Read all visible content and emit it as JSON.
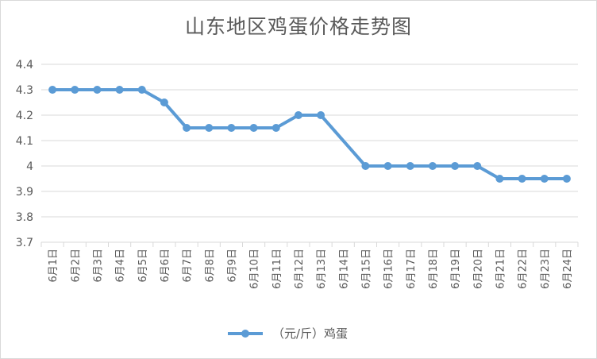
{
  "chart_data": {
    "type": "line",
    "title": "山东地区鸡蛋价格走势图",
    "xlabel": "",
    "ylabel": "",
    "categories": [
      "6月1日",
      "6月2日",
      "6月3日",
      "6月4日",
      "6月5日",
      "6月6日",
      "6月7日",
      "6月8日",
      "6月9日",
      "6月10日",
      "6月11日",
      "6月12日",
      "6月13日",
      "6月14日",
      "6月15日",
      "6月16日",
      "6月17日",
      "6月18日",
      "6月19日",
      "6月20日",
      "6月21日",
      "6月22日",
      "6月23日",
      "6月24日"
    ],
    "series": [
      {
        "name": "（元/斤）鸡蛋",
        "values": [
          4.3,
          4.3,
          4.3,
          4.3,
          4.3,
          4.25,
          4.15,
          4.15,
          4.15,
          4.15,
          4.15,
          4.2,
          4.2,
          null,
          4.0,
          4.0,
          4.0,
          4.0,
          4.0,
          4.0,
          3.95,
          3.95,
          3.95,
          3.95
        ],
        "color": "#5b9bd5"
      }
    ],
    "yticks": [
      "3.7",
      "3.8",
      "3.9",
      "4",
      "4.1",
      "4.2",
      "4.3",
      "4.4"
    ],
    "ylim": [
      3.7,
      4.4
    ],
    "grid": true,
    "legend": "bottom"
  }
}
